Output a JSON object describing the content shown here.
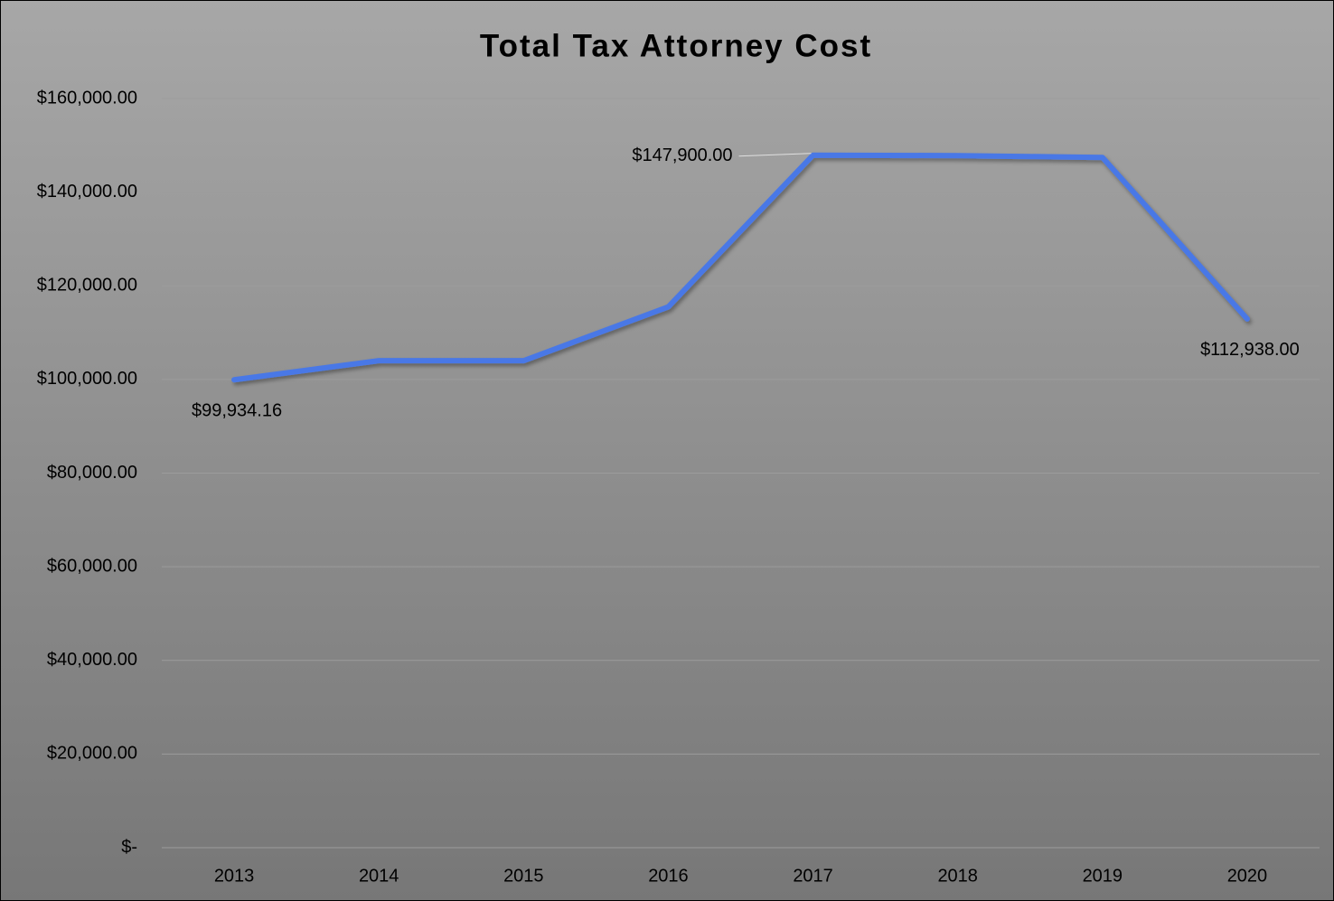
{
  "chart_data": {
    "type": "line",
    "title": "Total Tax Attorney Cost",
    "categories": [
      "2013",
      "2014",
      "2015",
      "2016",
      "2017",
      "2018",
      "2019",
      "2020"
    ],
    "series": [
      {
        "name": "Total Tax Attorney Cost",
        "color": "#4a78e6",
        "values": [
          99934.16,
          104000,
          104000,
          115500,
          147900,
          147800,
          147400,
          112938
        ],
        "value_labels": [
          "$99,934.16",
          null,
          null,
          null,
          "$147,900.00",
          null,
          null,
          "$112,938.00"
        ]
      }
    ],
    "ylim": [
      0,
      160000
    ],
    "yticks": [
      {
        "value": 0,
        "label": "$-"
      },
      {
        "value": 20000,
        "label": "$20,000.00"
      },
      {
        "value": 40000,
        "label": "$40,000.00"
      },
      {
        "value": 60000,
        "label": "$60,000.00"
      },
      {
        "value": 80000,
        "label": "$80,000.00"
      },
      {
        "value": 100000,
        "label": "$100,000.00"
      },
      {
        "value": 120000,
        "label": "$120,000.00"
      },
      {
        "value": 140000,
        "label": "$140,000.00"
      },
      {
        "value": 160000,
        "label": "$160,000.00"
      }
    ],
    "grid": true
  }
}
